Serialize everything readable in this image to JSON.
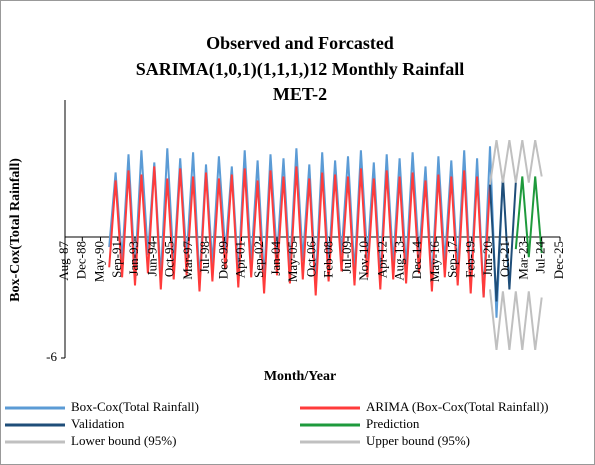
{
  "chart_data": {
    "type": "line",
    "title": "Observed and Forcasted",
    "subtitle": "SARIMA(1,0,1)(1,1,1,)12 Monthly Rainfall",
    "subtitle2": "MET-2",
    "x_label": "Month/Year",
    "y_label": "Box-Cox(Total Rainfall)",
    "xlim": [
      1987.58,
      2025.92
    ],
    "ylim": [
      -6,
      6
    ],
    "yticks": [
      -6
    ],
    "xticks": [
      {
        "value": 1987.58,
        "label": "Aug-87"
      },
      {
        "value": 1988.92,
        "label": "Dec-88"
      },
      {
        "value": 1990.33,
        "label": "May-90"
      },
      {
        "value": 1991.67,
        "label": "Sep-91"
      },
      {
        "value": 1993.0,
        "label": "Jan-93"
      },
      {
        "value": 1994.42,
        "label": "Jun-94"
      },
      {
        "value": 1995.75,
        "label": "Oct-95"
      },
      {
        "value": 1997.17,
        "label": "Mar-97"
      },
      {
        "value": 1998.5,
        "label": "Jul-98"
      },
      {
        "value": 1999.92,
        "label": "Dec-99"
      },
      {
        "value": 2001.25,
        "label": "Apr-01"
      },
      {
        "value": 2002.67,
        "label": "Sep-02"
      },
      {
        "value": 2004.0,
        "label": "Jan-04"
      },
      {
        "value": 2005.33,
        "label": "May-05"
      },
      {
        "value": 2006.75,
        "label": "Oct-06"
      },
      {
        "value": 2008.08,
        "label": "Feb-08"
      },
      {
        "value": 2009.5,
        "label": "Jul-09"
      },
      {
        "value": 2010.83,
        "label": "Nov-10"
      },
      {
        "value": 2012.25,
        "label": "Apr-12"
      },
      {
        "value": 2013.58,
        "label": "Aug-13"
      },
      {
        "value": 2014.92,
        "label": "Dec-14"
      },
      {
        "value": 2016.33,
        "label": "May-16"
      },
      {
        "value": 2017.67,
        "label": "Sep-17"
      },
      {
        "value": 2019.08,
        "label": "Feb-19"
      },
      {
        "value": 2020.42,
        "label": "Jun-20"
      },
      {
        "value": 2021.75,
        "label": "Oct-21"
      },
      {
        "value": 2023.17,
        "label": "Mar-23"
      },
      {
        "value": 2024.5,
        "label": "Jul-24"
      },
      {
        "value": 2025.92,
        "label": "Dec-25"
      }
    ],
    "legend": "bottom",
    "series": [
      {
        "name": "Box-Cox(Total Rainfall)",
        "color": "#5b9bd5",
        "x": [
          1991,
          1991.5,
          1992,
          1992.5,
          1993,
          1993.5,
          1994,
          1994.5,
          1995,
          1995.5,
          1996,
          1996.5,
          1997,
          1997.5,
          1998,
          1998.5,
          1999,
          1999.5,
          2000,
          2000.5,
          2001,
          2001.5,
          2002,
          2002.5,
          2003,
          2003.5,
          2004,
          2004.5,
          2005,
          2005.5,
          2006,
          2006.5,
          2007,
          2007.5,
          2008,
          2008.5,
          2009,
          2009.5,
          2010,
          2010.5,
          2011,
          2011.5,
          2012,
          2012.5,
          2013,
          2013.5,
          2014,
          2014.5,
          2015,
          2015.5,
          2016,
          2016.5,
          2017,
          2017.5,
          2018,
          2018.5,
          2019,
          2019.5,
          2020,
          2020.5,
          2021,
          2021.5
        ],
        "values": [
          -0.5,
          3.2,
          -1.2,
          4.1,
          -1.8,
          4.3,
          -0.9,
          3.7,
          -2.0,
          4.4,
          -1.5,
          3.9,
          -1.1,
          4.2,
          -2.2,
          3.6,
          -1.4,
          4.0,
          -0.8,
          3.5,
          -1.9,
          4.3,
          -1.3,
          3.8,
          -2.1,
          4.1,
          -1.0,
          3.9,
          -1.7,
          4.4,
          -1.2,
          3.6,
          -2.3,
          4.2,
          -1.5,
          3.8,
          -0.9,
          4.0,
          -1.8,
          4.3,
          -1.1,
          3.7,
          -2.0,
          4.1,
          -1.4,
          3.9,
          -1.6,
          4.2,
          -1.0,
          3.5,
          -2.2,
          4.0,
          -1.3,
          3.8,
          -1.7,
          4.3,
          -2.5,
          3.9,
          -3.0,
          4.5,
          -4.0,
          3.0
        ]
      },
      {
        "name": "ARIMA (Box-Cox(Total Rainfall))",
        "color": "#ff3b3b",
        "x": [
          1991,
          1991.5,
          1992,
          1992.5,
          1993,
          1993.5,
          1994,
          1994.5,
          1995,
          1995.5,
          1996,
          1996.5,
          1997,
          1997.5,
          1998,
          1998.5,
          1999,
          1999.5,
          2000,
          2000.5,
          2001,
          2001.5,
          2002,
          2002.5,
          2003,
          2003.5,
          2004,
          2004.5,
          2005,
          2005.5,
          2006,
          2006.5,
          2007,
          2007.5,
          2008,
          2008.5,
          2009,
          2009.5,
          2010,
          2010.5,
          2011,
          2011.5,
          2012,
          2012.5,
          2013,
          2013.5,
          2014,
          2014.5,
          2015,
          2015.5,
          2016,
          2016.5,
          2017,
          2017.5,
          2018,
          2018.5,
          2019,
          2019.5,
          2020,
          2020.5
        ],
        "values": [
          -1.5,
          2.8,
          -2.0,
          3.3,
          -2.4,
          3.1,
          -1.8,
          3.5,
          -2.6,
          2.9,
          -2.1,
          3.4,
          -1.9,
          3.0,
          -2.7,
          3.2,
          -2.2,
          2.9,
          -1.6,
          3.1,
          -2.5,
          3.4,
          -2.0,
          2.8,
          -2.8,
          3.3,
          -1.9,
          3.0,
          -2.3,
          3.5,
          -2.1,
          2.9,
          -2.9,
          3.2,
          -2.2,
          3.1,
          -1.7,
          3.0,
          -2.4,
          3.4,
          -2.0,
          2.9,
          -2.6,
          3.3,
          -2.1,
          3.0,
          -2.3,
          3.2,
          -1.8,
          2.8,
          -2.7,
          3.1,
          -2.0,
          3.0,
          -2.4,
          3.3,
          -2.8,
          3.0,
          -3.0,
          2.6
        ]
      },
      {
        "name": "Validation",
        "color": "#1f4e79",
        "x": [
          2020.5,
          2021,
          2021.5,
          2022,
          2022.5
        ],
        "values": [
          2.6,
          -3.2,
          3.0,
          -2.6,
          2.7
        ]
      },
      {
        "name": "Prediction",
        "color": "#1e9a3c",
        "x": [
          2022.5,
          2023,
          2023.5,
          2024,
          2024.5
        ],
        "values": [
          -0.6,
          3.0,
          -1.0,
          3.0,
          -0.8
        ]
      },
      {
        "name": "Lower bound (95%)",
        "color": "#c0c0c0",
        "x": [
          2020.5,
          2021,
          2021.5,
          2022,
          2022.5,
          2023,
          2023.5,
          2024,
          2024.5
        ],
        "values": [
          -2.6,
          -5.6,
          -2.7,
          -5.6,
          -2.7,
          -5.6,
          -2.7,
          -5.6,
          -3.0
        ]
      },
      {
        "name": "Upper bound (95%)",
        "color": "#c0c0c0",
        "x": [
          2020.5,
          2021,
          2021.5,
          2022,
          2022.5,
          2023,
          2023.5,
          2024,
          2024.5
        ],
        "values": [
          2.6,
          4.8,
          2.7,
          4.8,
          2.7,
          4.8,
          2.7,
          4.8,
          3.0
        ]
      }
    ]
  }
}
